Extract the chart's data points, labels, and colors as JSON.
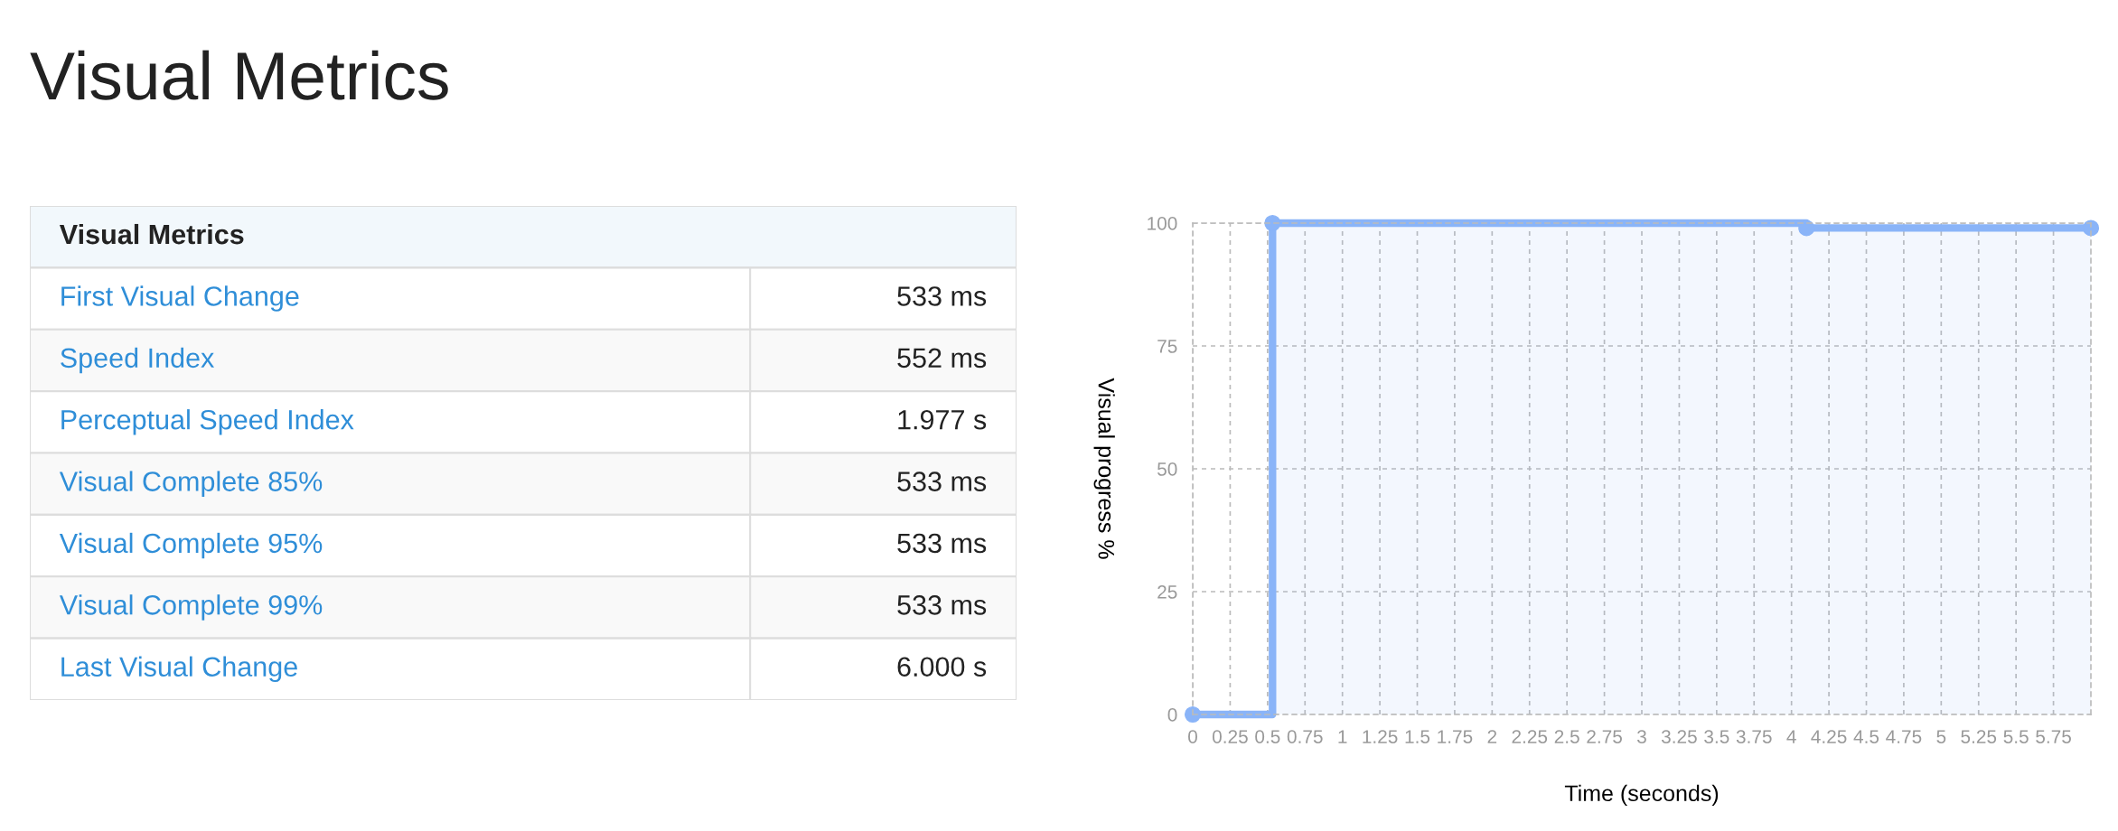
{
  "chart_data": [
    {
      "type": "other",
      "title": "Visual Metrics",
      "subtitle": "Visual Metrics",
      "categories": [
        "First Visual Change",
        "Speed Index",
        "Perceptual Speed Index",
        "Visual Complete 85%",
        "Visual Complete 95%",
        "Visual Complete 99%",
        "Last Visual Change"
      ],
      "value_labels": [
        "533 ms",
        "552 ms",
        "1.977 s",
        "533 ms",
        "533 ms",
        "533 ms",
        "6.000 s"
      ]
    },
    {
      "type": "area",
      "xlabel": "Time (seconds)",
      "ylabel": "Visual progress %",
      "series": [
        {
          "type": "step",
          "color": "#8ab4f8",
          "x": [
            0,
            0.533,
            4.1,
            6
          ],
          "values": [
            0,
            100,
            99,
            99
          ]
        }
      ],
      "xlim": [
        0,
        6
      ],
      "ylim": [
        0,
        100
      ],
      "xticks": [
        0,
        0.25,
        0.5,
        0.75,
        1,
        1.25,
        1.5,
        1.75,
        2,
        2.25,
        2.5,
        2.75,
        3,
        3.25,
        3.5,
        3.75,
        4,
        4.25,
        4.5,
        4.75,
        5,
        5.25,
        5.5,
        5.75
      ],
      "yticks": [
        0,
        25,
        50,
        75,
        100
      ],
      "grid": true,
      "marker": "circle",
      "line_style": "solid"
    }
  ]
}
